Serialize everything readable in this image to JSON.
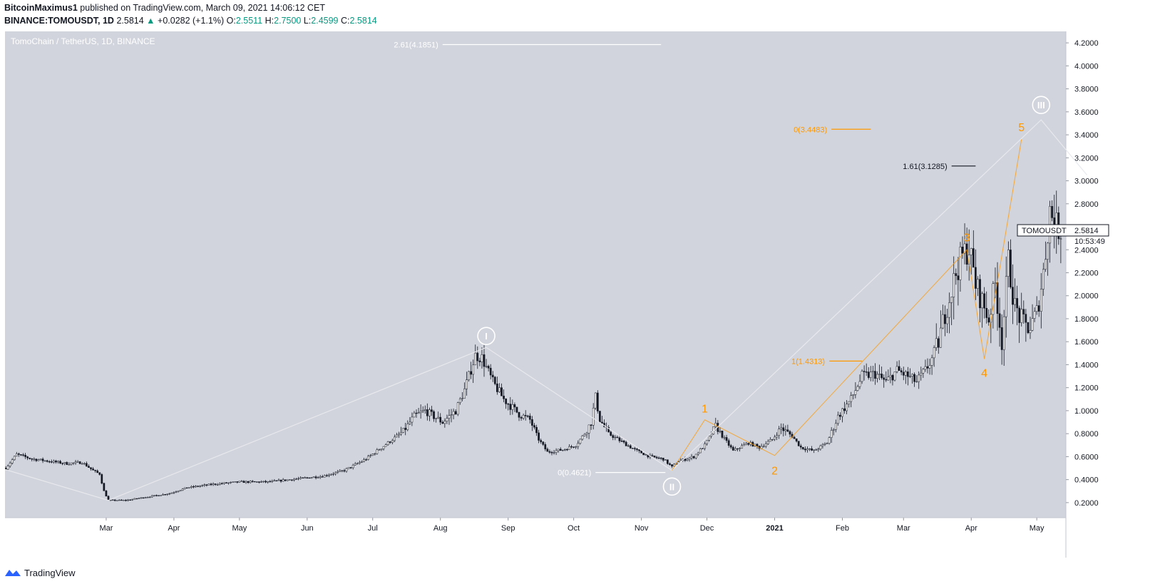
{
  "header": {
    "author": "BitcoinMaximus1",
    "published": "published on TradingView.com, March 09, 2021 14:06:12 CET",
    "symbol": "BINANCE:TOMOUSDT, 1D",
    "last": "2.5814",
    "change": "+0.0282 (+1.1%)",
    "o_label": "O:",
    "o": "2.5511",
    "h_label": "H:",
    "h": "2.7500",
    "l_label": "L:",
    "l": "2.4599",
    "c_label": "C:",
    "c": "2.5814"
  },
  "chart_title": "TomoChain / TetherUS, 1D, BINANCE",
  "price_tag": {
    "symbol": "TOMOUSDT",
    "price": "2.5814",
    "countdown": "10:53:49"
  },
  "footer": {
    "brand": "TradingView"
  },
  "colors": {
    "bg": "#d1d4dc",
    "candle": "#131722",
    "orange": "#ff9800",
    "white": "#ffffff",
    "up": "#089981"
  },
  "chart_data": {
    "type": "candlestick",
    "title": "TomoChain / TetherUS, 1D, BINANCE",
    "yunit": "USDT",
    "ylim": [
      0.1,
      4.3
    ],
    "yticks": [
      "4.2000",
      "4.0000",
      "3.8000",
      "3.6000",
      "3.4000",
      "3.2000",
      "3.0000",
      "2.8000",
      "2.6000",
      "2.4000",
      "2.2000",
      "2.0000",
      "1.8000",
      "1.6000",
      "1.4000",
      "1.2000",
      "1.0000",
      "0.8000",
      "0.6000",
      "0.4000",
      "0.2000"
    ],
    "xticks": [
      {
        "label": "Mar",
        "day": 26
      },
      {
        "label": "Apr",
        "day": 57
      },
      {
        "label": "May",
        "day": 87
      },
      {
        "label": "Jun",
        "day": 118
      },
      {
        "label": "Jul",
        "day": 148
      },
      {
        "label": "Aug",
        "day": 179
      },
      {
        "label": "Sep",
        "day": 210
      },
      {
        "label": "Oct",
        "day": 240
      },
      {
        "label": "Nov",
        "day": 271
      },
      {
        "label": "Dec",
        "day": 301
      },
      {
        "label": "2021",
        "day": 332
      },
      {
        "label": "Feb",
        "day": 363
      },
      {
        "label": "Mar",
        "day": 391
      },
      {
        "label": "Apr",
        "day": 422
      },
      {
        "label": "May",
        "day": 452
      }
    ],
    "xlim": [
      -20,
      465
    ],
    "path": [
      [
        -20,
        0.5
      ],
      [
        -15,
        0.62
      ],
      [
        -8,
        0.58
      ],
      [
        0,
        0.56
      ],
      [
        8,
        0.54
      ],
      [
        15,
        0.55
      ],
      [
        20,
        0.48
      ],
      [
        23,
        0.45
      ],
      [
        25,
        0.3
      ],
      [
        27,
        0.22
      ],
      [
        35,
        0.22
      ],
      [
        45,
        0.25
      ],
      [
        55,
        0.28
      ],
      [
        63,
        0.33
      ],
      [
        75,
        0.36
      ],
      [
        87,
        0.38
      ],
      [
        100,
        0.38
      ],
      [
        115,
        0.41
      ],
      [
        125,
        0.43
      ],
      [
        135,
        0.48
      ],
      [
        145,
        0.58
      ],
      [
        155,
        0.72
      ],
      [
        162,
        0.82
      ],
      [
        167,
        0.95
      ],
      [
        172,
        1.0
      ],
      [
        180,
        0.9
      ],
      [
        186,
        1.0
      ],
      [
        190,
        1.18
      ],
      [
        195,
        1.48
      ],
      [
        198,
        1.46
      ],
      [
        203,
        1.25
      ],
      [
        208,
        1.1
      ],
      [
        215,
        0.97
      ],
      [
        220,
        0.92
      ],
      [
        224,
        0.75
      ],
      [
        228,
        0.64
      ],
      [
        235,
        0.66
      ],
      [
        241,
        0.7
      ],
      [
        245,
        0.8
      ],
      [
        248,
        0.9
      ],
      [
        250,
        1.12
      ],
      [
        252,
        0.92
      ],
      [
        256,
        0.8
      ],
      [
        262,
        0.73
      ],
      [
        268,
        0.66
      ],
      [
        275,
        0.6
      ],
      [
        281,
        0.58
      ],
      [
        285,
        0.51
      ],
      [
        288,
        0.56
      ],
      [
        295,
        0.6
      ],
      [
        300,
        0.7
      ],
      [
        303,
        0.8
      ],
      [
        305,
        0.87
      ],
      [
        308,
        0.78
      ],
      [
        313,
        0.65
      ],
      [
        320,
        0.72
      ],
      [
        325,
        0.68
      ],
      [
        331,
        0.75
      ],
      [
        335,
        0.85
      ],
      [
        340,
        0.78
      ],
      [
        344,
        0.68
      ],
      [
        350,
        0.65
      ],
      [
        356,
        0.72
      ],
      [
        361,
        0.95
      ],
      [
        367,
        1.1
      ],
      [
        372,
        1.3
      ],
      [
        378,
        1.32
      ],
      [
        383,
        1.25
      ],
      [
        388,
        1.35
      ],
      [
        393,
        1.3
      ],
      [
        397,
        1.25
      ],
      [
        401,
        1.35
      ],
      [
        404,
        1.45
      ],
      [
        407,
        1.6
      ],
      [
        410,
        1.85
      ],
      [
        413,
        2.05
      ],
      [
        415,
        2.2
      ],
      [
        418,
        2.35
      ],
      [
        421,
        2.42
      ],
      [
        424,
        2.1
      ],
      [
        427,
        1.95
      ],
      [
        430,
        1.8
      ],
      [
        433,
        2.1
      ],
      [
        436,
        1.6
      ],
      [
        439,
        2.3
      ],
      [
        442,
        1.9
      ],
      [
        446,
        1.75
      ],
      [
        449,
        1.72
      ],
      [
        452,
        1.85
      ],
      [
        455,
        2.2
      ],
      [
        458,
        2.75
      ],
      [
        461,
        2.6
      ],
      [
        463,
        2.58
      ]
    ],
    "fib_levels": [
      {
        "label": "2.61(4.1851)",
        "value": 4.1851,
        "x0": 180,
        "x1": 280,
        "color": "white",
        "label_side": "left"
      },
      {
        "label": "0(3.4483)",
        "value": 3.4483,
        "x0": 358,
        "x1": 376,
        "color": "orange",
        "label_side": "left"
      },
      {
        "label": "1.61(3.1285)",
        "value": 3.1285,
        "x0": 413,
        "x1": 424,
        "color": "black",
        "label_side": "left"
      },
      {
        "label": "1(1.4313)",
        "value": 1.4313,
        "x0": 357,
        "x1": 372,
        "color": "orange",
        "label_side": "left"
      },
      {
        "label": "0(0.4621)",
        "value": 0.4621,
        "x0": 250,
        "x1": 282,
        "color": "white",
        "label_side": "left"
      }
    ],
    "waves_major": [
      {
        "label": "I",
        "day": 200,
        "value": 1.55,
        "label_y": 1.65,
        "style": "circle"
      },
      {
        "label": "II",
        "day": 285,
        "value": 0.48,
        "label_y": 0.34,
        "style": "circle"
      },
      {
        "label": "III",
        "day": 454,
        "value": 3.53,
        "label_y": 3.66,
        "style": "circle"
      }
    ],
    "major_path": [
      [
        -40,
        0.6
      ],
      [
        27,
        0.22
      ],
      [
        200,
        1.55
      ],
      [
        285,
        0.48
      ],
      [
        454,
        3.53
      ],
      [
        475,
        3.05
      ]
    ],
    "waves_minor": [
      {
        "label": "1",
        "day": 300,
        "value": 0.92,
        "label_y": 1.02
      },
      {
        "label": "2",
        "day": 332,
        "value": 0.61,
        "label_y": 0.48
      },
      {
        "label": "3",
        "day": 420,
        "value": 2.4,
        "label_y": 2.51
      },
      {
        "label": "4",
        "day": 428,
        "value": 1.45,
        "label_y": 1.33
      },
      {
        "label": "5",
        "day": 445,
        "value": 3.36,
        "label_y": 3.47
      }
    ],
    "minor_path": [
      [
        285,
        0.48
      ],
      [
        300,
        0.92
      ],
      [
        332,
        0.61
      ],
      [
        420,
        2.4
      ],
      [
        428,
        1.45
      ],
      [
        445,
        3.36
      ]
    ]
  }
}
